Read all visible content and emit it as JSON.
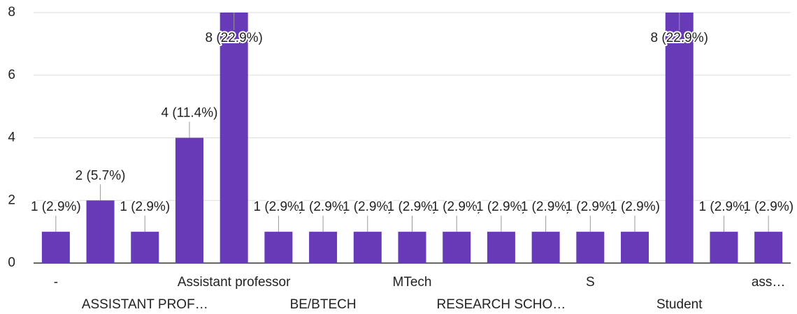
{
  "chart_data": {
    "type": "bar",
    "categories": [
      "-",
      null,
      "ASSISTANT PROF…",
      null,
      "Assistant professor",
      null,
      "BE/BTECH",
      null,
      "MTech",
      null,
      "RESEARCH SCHO…",
      null,
      "S",
      null,
      "Student",
      null,
      "ass…"
    ],
    "values": [
      1,
      2,
      1,
      4,
      8,
      1,
      1,
      1,
      1,
      1,
      1,
      1,
      1,
      1,
      8,
      1,
      1
    ],
    "value_labels": [
      "1 (2.9%)",
      "2 (5.7%)",
      "1 (2.9%)",
      "4 (11.4%)",
      "8 (22.9%)",
      "1 (2.9%)",
      "1 (2.9%)",
      "1 (2.9%)",
      "1 (2.9%)",
      "1 (2.9%)",
      "1 (2.9%)",
      "1 (2.9%)",
      "1 (2.9%)",
      "1 (2.9%)",
      "8 (22.9%)",
      "1 (2.9%)",
      "1 (2.9%)"
    ],
    "color": "#673ab7",
    "ylim": [
      0,
      8
    ],
    "yticks": [
      0,
      2,
      4,
      6,
      8
    ],
    "grid": true
  }
}
